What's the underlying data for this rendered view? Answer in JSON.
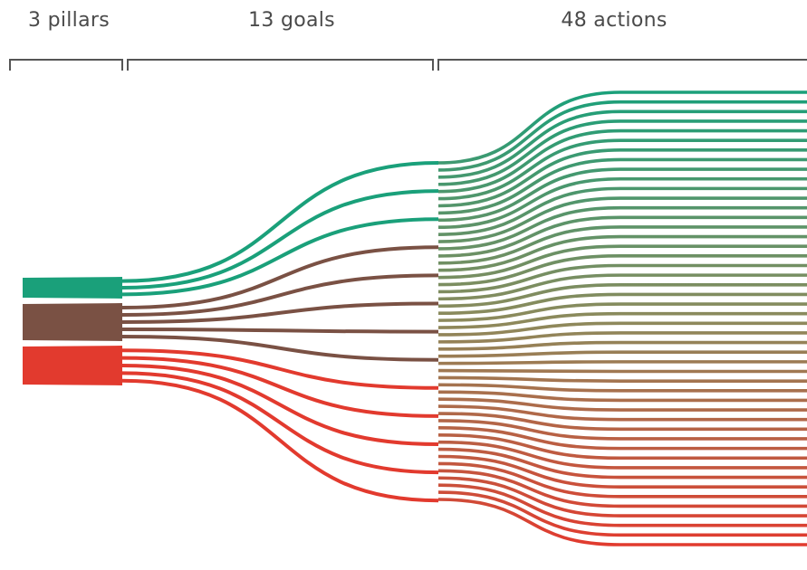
{
  "headers": {
    "pillars": "3 pillars",
    "goals": "13 goals",
    "actions": "48 actions"
  },
  "colors": {
    "pillar_green": "#1aa07a",
    "pillar_brown": "#7a5144",
    "pillar_red": "#e23a2e",
    "bracket": "#555555"
  },
  "structure": {
    "pillars": [
      {
        "color_key": "pillar_green",
        "goals": 3
      },
      {
        "color_key": "pillar_brown",
        "goals": 5
      },
      {
        "color_key": "pillar_red",
        "goals": 5
      }
    ],
    "goal_pillars": [
      0,
      0,
      0,
      1,
      1,
      1,
      1,
      1,
      2,
      2,
      2,
      2,
      2
    ],
    "actions": 48
  }
}
